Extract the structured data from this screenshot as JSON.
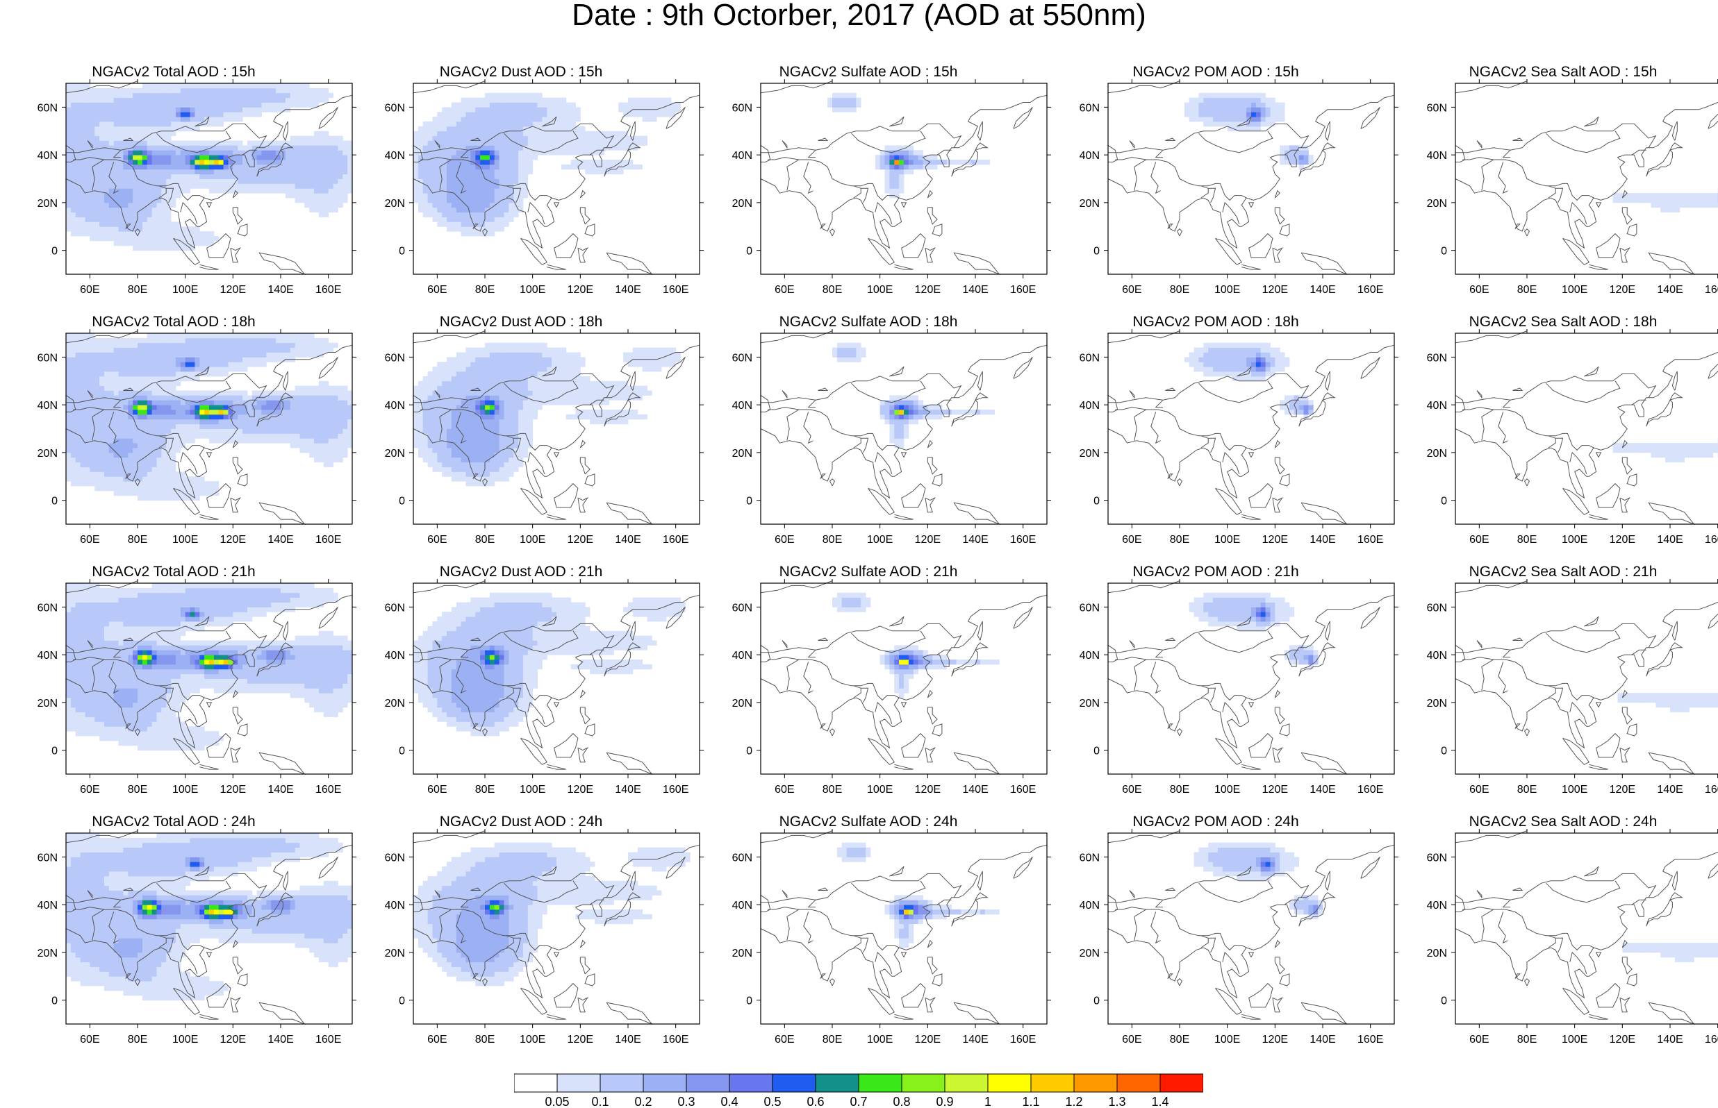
{
  "title": "Date : 9th Octorber, 2017 (AOD at 550nm)",
  "map": {
    "lon_ticks": [
      "60E",
      "80E",
      "100E",
      "120E",
      "140E",
      "160E"
    ],
    "lat_ticks": [
      "60N",
      "40N",
      "20N",
      "0"
    ],
    "lon_values": [
      60,
      80,
      100,
      120,
      140,
      160
    ],
    "lat_values": [
      60,
      40,
      20,
      0
    ],
    "lon_range": [
      50,
      170
    ],
    "lat_range": [
      -10,
      70
    ],
    "coastline_color": "#555555"
  },
  "species": [
    {
      "key": "total",
      "label": "Total"
    },
    {
      "key": "dust",
      "label": "Dust"
    },
    {
      "key": "sulfate",
      "label": "Sulfate"
    },
    {
      "key": "pom",
      "label": "POM"
    },
    {
      "key": "seasalt",
      "label": "Sea Salt"
    }
  ],
  "panels": [
    [
      "NGACv2 Total AOD : 15h",
      "NGACv2 Dust AOD : 15h",
      "NGACv2 Sulfate AOD : 15h",
      "NGACv2 POM AOD : 15h",
      "NGACv2 Sea Salt AOD : 15h"
    ],
    [
      "NGACv2 Total AOD : 18h",
      "NGACv2 Dust AOD : 18h",
      "NGACv2 Sulfate AOD : 18h",
      "NGACv2 POM AOD : 18h",
      "NGACv2 Sea Salt AOD : 18h"
    ],
    [
      "NGACv2 Total AOD : 21h",
      "NGACv2 Dust AOD : 21h",
      "NGACv2 Sulfate AOD : 21h",
      "NGACv2 POM AOD : 21h",
      "NGACv2 Sea Salt AOD : 21h"
    ],
    [
      "NGACv2 Total AOD : 24h",
      "NGACv2 Dust AOD : 24h",
      "NGACv2 Sulfate AOD : 24h",
      "NGACv2 POM AOD : 24h",
      "NGACv2 Sea Salt  AOD : 24h"
    ]
  ],
  "colorbar": {
    "labels": [
      "0.05",
      "0.1",
      "0.2",
      "0.3",
      "0.4",
      "0.5",
      "0.6",
      "0.7",
      "0.8",
      "0.9",
      "1",
      "1.1",
      "1.2",
      "1.3",
      "1.4"
    ],
    "colors": [
      "#ffffff",
      "#d8e2fb",
      "#b8c8f8",
      "#9cb0f4",
      "#8596ef",
      "#6877ee",
      "#1f5df0",
      "#11908a",
      "#3ae81a",
      "#88f01a",
      "#ccf532",
      "#ffff00",
      "#ffcc00",
      "#ff9900",
      "#ff6600",
      "#ff1a00"
    ]
  }
}
